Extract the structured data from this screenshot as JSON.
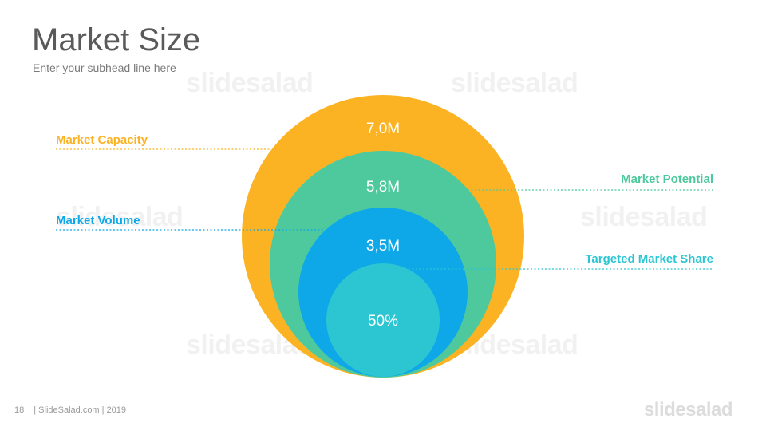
{
  "slide": {
    "title": "Market Size",
    "subtitle": "Enter your subhead line here",
    "page_number": "18",
    "footer_text": "| SlideSalad.com | 2019",
    "brand": "slidesalad",
    "watermark": "slidesalad"
  },
  "circles": [
    {
      "value": "7,0M",
      "label": "Market Capacity",
      "color": "#fbb324"
    },
    {
      "value": "5,8M",
      "label": "Market Potential",
      "color": "#4ec99e"
    },
    {
      "value": "3,5M",
      "label": "Market Volume",
      "color": "#0ea8e8"
    },
    {
      "value": "50%",
      "label": "Targeted Market Share",
      "color": "#2cc6d2"
    }
  ]
}
